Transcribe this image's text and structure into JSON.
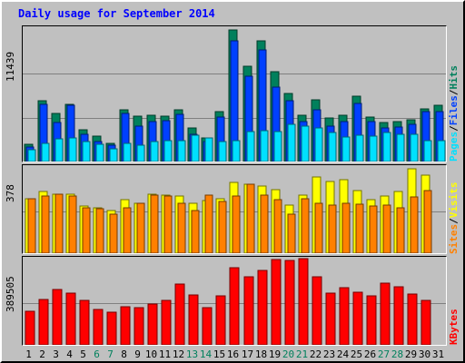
{
  "title": "Daily usage for September 2014",
  "colors": {
    "pages": "#00e0ff",
    "files": "#0040ff",
    "hits": "#00805c",
    "visits": "#ffff00",
    "sites": "#ff8000",
    "kbytes": "#ff0000",
    "weekend_label": "#00805c",
    "grid": "#808080",
    "title": "#0000ff"
  },
  "legends": {
    "pages": "Pages",
    "files": "Files",
    "hits": "Hits",
    "sites": "Sites",
    "visits": "Visits",
    "kbytes": "KBytes",
    "separator": "/"
  },
  "chart_data": [
    {
      "type": "bar",
      "name": "hits-files-pages",
      "max_label": "11439",
      "ylim": [
        0,
        11439
      ],
      "categories": [
        "1",
        "2",
        "3",
        "4",
        "5",
        "6",
        "7",
        "8",
        "9",
        "10",
        "11",
        "12",
        "13",
        "14",
        "15",
        "16",
        "17",
        "18",
        "19",
        "20",
        "21",
        "22",
        "23",
        "24",
        "25",
        "26",
        "27",
        "28",
        "29",
        "30",
        "31"
      ],
      "weekend_days": [
        "6",
        "7",
        "13",
        "14",
        "20",
        "21",
        "27",
        "28"
      ],
      "series": [
        {
          "name": "Hits",
          "values": [
            1500,
            5300,
            4200,
            5000,
            2800,
            2200,
            1550,
            4500,
            3950,
            4000,
            3950,
            4500,
            2900,
            2050,
            4300,
            11400,
            8300,
            10500,
            7800,
            5900,
            4000,
            5400,
            3800,
            4000,
            5700,
            3900,
            3400,
            3500,
            3600,
            4600,
            4900
          ]
        },
        {
          "name": "Files",
          "values": [
            1300,
            5000,
            3400,
            4900,
            2350,
            1700,
            1400,
            4150,
            3100,
            3500,
            3550,
            4100,
            2400,
            1700,
            3900,
            10500,
            7400,
            9700,
            6500,
            5300,
            3500,
            4500,
            3100,
            3500,
            5050,
            3500,
            2900,
            3000,
            3200,
            4300,
            4350
          ]
        },
        {
          "name": "Pages",
          "values": [
            1000,
            1550,
            2000,
            2050,
            1700,
            1500,
            1100,
            1550,
            1400,
            1700,
            1800,
            1850,
            2300,
            2050,
            1750,
            1800,
            2600,
            2700,
            2600,
            3200,
            3100,
            2900,
            2500,
            2100,
            2300,
            2200,
            2500,
            2400,
            2400,
            1850,
            1800
          ]
        }
      ]
    },
    {
      "type": "bar",
      "name": "visits-sites",
      "max_label": "378",
      "ylim": [
        0,
        378
      ],
      "categories": [
        "1",
        "2",
        "3",
        "4",
        "5",
        "6",
        "7",
        "8",
        "9",
        "10",
        "11",
        "12",
        "13",
        "14",
        "15",
        "16",
        "17",
        "18",
        "19",
        "20",
        "21",
        "22",
        "23",
        "24",
        "25",
        "26",
        "27",
        "28",
        "29",
        "30",
        "31"
      ],
      "series": [
        {
          "name": "Visits",
          "values": [
            245,
            275,
            265,
            265,
            210,
            205,
            190,
            240,
            225,
            265,
            260,
            255,
            225,
            235,
            245,
            315,
            310,
            300,
            285,
            215,
            260,
            340,
            320,
            330,
            280,
            240,
            255,
            275,
            378,
            350,
            0
          ]
        },
        {
          "name": "Sites",
          "values": [
            245,
            255,
            265,
            255,
            205,
            200,
            175,
            205,
            225,
            260,
            255,
            225,
            190,
            260,
            230,
            255,
            310,
            260,
            240,
            175,
            245,
            225,
            215,
            225,
            220,
            210,
            215,
            205,
            250,
            280,
            0
          ]
        }
      ]
    },
    {
      "type": "bar",
      "name": "kbytes",
      "max_label": "389505",
      "ylim": [
        0,
        389505
      ],
      "categories": [
        "1",
        "2",
        "3",
        "4",
        "5",
        "6",
        "7",
        "8",
        "9",
        "10",
        "11",
        "12",
        "13",
        "14",
        "15",
        "16",
        "17",
        "18",
        "19",
        "20",
        "21",
        "22",
        "23",
        "24",
        "25",
        "26",
        "27",
        "28",
        "29",
        "30",
        "31"
      ],
      "series": [
        {
          "name": "KBytes",
          "values": [
            155000,
            210000,
            255000,
            240000,
            205000,
            165000,
            150000,
            175000,
            170000,
            190000,
            205000,
            280000,
            230000,
            170000,
            225000,
            355000,
            315000,
            345000,
            395000,
            390000,
            398000,
            315000,
            240000,
            265000,
            245000,
            225000,
            285000,
            270000,
            235000,
            205000,
            0
          ]
        }
      ]
    }
  ]
}
